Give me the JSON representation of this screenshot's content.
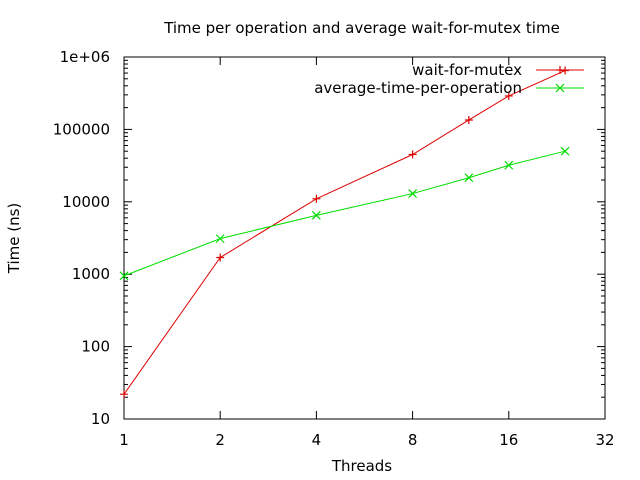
{
  "chart_data": {
    "type": "line",
    "title": "Time per operation and average wait-for-mutex time",
    "xlabel": "Threads",
    "ylabel": "Time (ns)",
    "x_scale": "log2",
    "y_scale": "log10",
    "xlim": [
      1,
      32
    ],
    "ylim": [
      10,
      1000000
    ],
    "x_ticks": [
      {
        "value": 1,
        "label": "1"
      },
      {
        "value": 2,
        "label": "2"
      },
      {
        "value": 4,
        "label": "4"
      },
      {
        "value": 8,
        "label": "8"
      },
      {
        "value": 16,
        "label": "16"
      },
      {
        "value": 32,
        "label": "32"
      }
    ],
    "y_ticks": [
      {
        "value": 10,
        "label": "10"
      },
      {
        "value": 100,
        "label": "100"
      },
      {
        "value": 1000,
        "label": "1000"
      },
      {
        "value": 10000,
        "label": "10000"
      },
      {
        "value": 100000,
        "label": "100000"
      },
      {
        "value": 1000000,
        "label": "1e+06"
      }
    ],
    "grid": false,
    "legend_position": "top-right",
    "series": [
      {
        "name": "wait-for-mutex",
        "color": "#dd0000",
        "marker": "plus",
        "x": [
          1,
          2,
          4,
          8,
          12,
          16,
          24
        ],
        "y": [
          22,
          1700,
          11000,
          45000,
          135000,
          290000,
          650000
        ]
      },
      {
        "name": "average-time-per-operation",
        "color": "#00dd00",
        "marker": "cross",
        "x": [
          1,
          2,
          4,
          8,
          12,
          16,
          24
        ],
        "y": [
          950,
          3100,
          6500,
          13000,
          21500,
          32000,
          50000
        ]
      }
    ]
  }
}
